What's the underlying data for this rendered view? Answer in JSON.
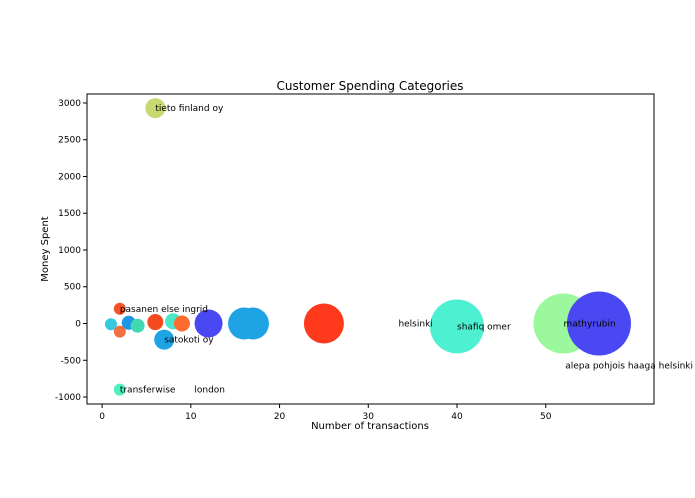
{
  "chart_data": {
    "type": "scatter",
    "title": "Customer Spending Categories",
    "xlabel": "Number of transactions",
    "ylabel": "Money Spent",
    "xlim": [
      -1.7,
      62.2
    ],
    "ylim": [
      -1095,
      3122
    ],
    "xticks": [
      0,
      10,
      20,
      30,
      40,
      50
    ],
    "yticks": [
      -1000,
      -500,
      0,
      500,
      1000,
      1500,
      2000,
      2500,
      3000
    ],
    "grid": false,
    "points": [
      {
        "label": "tieto finland oy",
        "x": 6,
        "y": 2930,
        "size": 10,
        "color": "#c9d870"
      },
      {
        "label": "pasanen else ingrid",
        "x": 2,
        "y": 200,
        "size": 6,
        "color": "#f4532a"
      },
      {
        "label": "",
        "x": 1,
        "y": -10,
        "size": 6,
        "color": "#35c8e0"
      },
      {
        "label": "",
        "x": 2,
        "y": -110,
        "size": 6,
        "color": "#f07040"
      },
      {
        "label": "",
        "x": 3,
        "y": 10,
        "size": 7,
        "color": "#1e96e6"
      },
      {
        "label": "",
        "x": 4,
        "y": -30,
        "size": 7,
        "color": "#40d8b0"
      },
      {
        "label": "",
        "x": 6,
        "y": 20,
        "size": 8,
        "color": "#f44a20"
      },
      {
        "label": "",
        "x": 8,
        "y": 30,
        "size": 8,
        "color": "#48e8c8"
      },
      {
        "label": "",
        "x": 9,
        "y": 0,
        "size": 8,
        "color": "#ff6a30"
      },
      {
        "label": "satokoti oy",
        "x": 7,
        "y": -220,
        "size": 10,
        "color": "#1ea4e4"
      },
      {
        "label": "",
        "x": 12,
        "y": 0,
        "size": 14,
        "color": "#4a48f2"
      },
      {
        "label": "",
        "x": 16,
        "y": 0,
        "size": 16,
        "color": "#1ea4e4"
      },
      {
        "label": "",
        "x": 17,
        "y": 0,
        "size": 16,
        "color": "#1ea4e4"
      },
      {
        "label": "",
        "x": 25,
        "y": 0,
        "size": 20,
        "color": "#ff3a1c"
      },
      {
        "label": "helsinki",
        "x": 33.4,
        "y": 0,
        "size": 0,
        "color": "#ffffff"
      },
      {
        "label": "shafiq omer",
        "x": 40,
        "y": -40,
        "size": 27,
        "color": "#4ef0d2"
      },
      {
        "label": "mathyrubin",
        "x": 52,
        "y": 0,
        "size": 30,
        "color": "#9cf89c"
      },
      {
        "label": "alepa pohjois haaga helsinki",
        "x": 56,
        "y": 0,
        "size": 32,
        "color": "#4a48f2"
      },
      {
        "label": "transferwise",
        "x": 2,
        "y": -900,
        "size": 6,
        "color": "#4ef0c0"
      },
      {
        "label": "london",
        "x": 10.4,
        "y": -900,
        "size": 0,
        "color": "#ffffff"
      }
    ]
  }
}
